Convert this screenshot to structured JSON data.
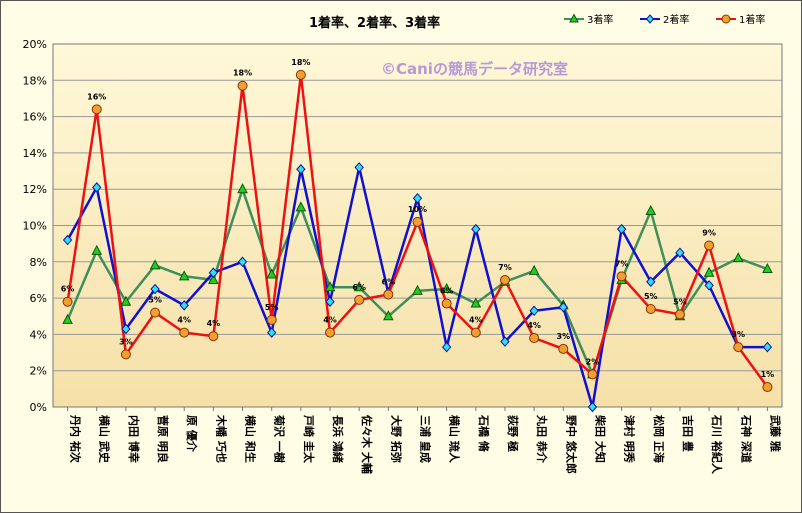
{
  "chart_data": {
    "type": "line",
    "title": "1着率、2着率、3着率",
    "watermark": "©Caniの競馬データ研究室",
    "ylim": [
      0,
      20
    ],
    "yticks": [
      "0%",
      "2%",
      "4%",
      "6%",
      "8%",
      "10%",
      "12%",
      "14%",
      "16%",
      "18%",
      "20%"
    ],
    "grid": true,
    "legend_position": "top-right",
    "categories": [
      "丹内 祐次",
      "横山 武史",
      "内田 博幸",
      "菅原 明良",
      "原 優介",
      "木幡 巧也",
      "横山 和生",
      "菊沢 一樹",
      "戸崎 圭太",
      "長浜 鴻緒",
      "佐々木 大輔",
      "大野 拓弥",
      "三浦 皇成",
      "横山 琉人",
      "石橋 脩",
      "荻野 極",
      "丸田 恭介",
      "野中 悠太郎",
      "柴田 大知",
      "津村 明秀",
      "松岡 正海",
      "吉田 豊",
      "石川 裕紀人",
      "石神 深道",
      "武藤 雅"
    ],
    "series": [
      {
        "name": "3着率",
        "color": "#3f8f5a",
        "marker": "triangle",
        "marker_color": "#22cc22",
        "values": [
          4.8,
          8.6,
          5.8,
          7.8,
          7.2,
          7.0,
          12.0,
          7.3,
          11.0,
          6.6,
          6.6,
          5.0,
          6.4,
          6.5,
          5.7,
          6.9,
          7.5,
          5.6,
          1.8,
          7.0,
          10.8,
          5.0,
          7.4,
          8.2,
          7.6
        ]
      },
      {
        "name": "2着率",
        "color": "#1010d0",
        "marker": "diamond",
        "marker_color": "#30e0f0",
        "values": [
          9.2,
          12.1,
          4.3,
          6.5,
          5.6,
          7.4,
          8.0,
          4.1,
          13.1,
          5.8,
          13.2,
          6.3,
          11.5,
          3.3,
          9.8,
          3.6,
          5.3,
          5.5,
          0.0,
          9.8,
          6.9,
          8.5,
          6.7,
          3.3,
          3.3
        ]
      },
      {
        "name": "1着率",
        "color": "#ee1111",
        "marker": "circle",
        "marker_color": "#f0a030",
        "values": [
          5.8,
          16.4,
          2.9,
          5.2,
          4.1,
          3.9,
          17.7,
          4.8,
          18.3,
          4.1,
          5.9,
          6.2,
          10.2,
          5.7,
          4.1,
          7.0,
          3.8,
          3.2,
          1.8,
          7.2,
          5.4,
          5.1,
          8.9,
          3.3,
          1.1
        ]
      }
    ],
    "data_labels": [
      "6%",
      "16%",
      "3%",
      "5%",
      "4%",
      "4%",
      "18%",
      "5%",
      "18%",
      "4%",
      "6%",
      "6%",
      "10%",
      "6%",
      "4%",
      "7%",
      "4%",
      "3%",
      "2%",
      "7%",
      "5%",
      "5%",
      "9%",
      "3%",
      "1%"
    ]
  }
}
